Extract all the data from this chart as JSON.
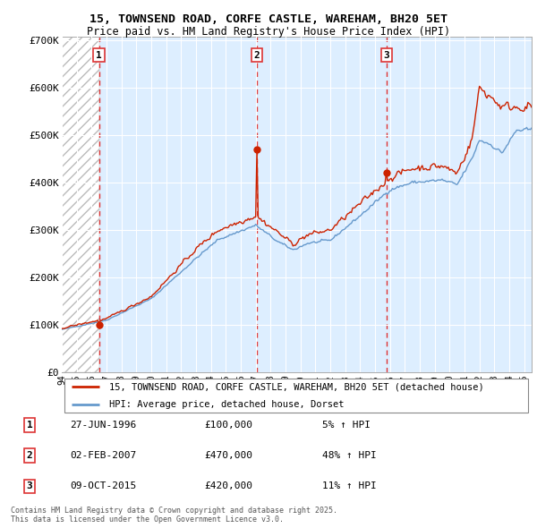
{
  "title_line1": "15, TOWNSEND ROAD, CORFE CASTLE, WAREHAM, BH20 5ET",
  "title_line2": "Price paid vs. HM Land Registry's House Price Index (HPI)",
  "sale_dates": [
    1996.49,
    2007.09,
    2015.77
  ],
  "sale_prices": [
    100000,
    470000,
    420000
  ],
  "sale_labels": [
    "1",
    "2",
    "3"
  ],
  "sale_date_strs": [
    "27-JUN-1996",
    "02-FEB-2007",
    "09-OCT-2015"
  ],
  "sale_price_strs": [
    "£100,000",
    "£470,000",
    "£420,000"
  ],
  "sale_hpi_strs": [
    "5% ↑ HPI",
    "48% ↑ HPI",
    "11% ↑ HPI"
  ],
  "hpi_color": "#6699cc",
  "price_color": "#cc2200",
  "vline_color": "#dd3333",
  "bg_color": "#ddeeff",
  "legend_label_price": "15, TOWNSEND ROAD, CORFE CASTLE, WAREHAM, BH20 5ET (detached house)",
  "legend_label_hpi": "HPI: Average price, detached house, Dorset",
  "footnote": "Contains HM Land Registry data © Crown copyright and database right 2025.\nThis data is licensed under the Open Government Licence v3.0.",
  "xlim_start": 1994.0,
  "xlim_end": 2025.5,
  "ylim_min": 0,
  "ylim_max": 700000,
  "yticks": [
    0,
    100000,
    200000,
    300000,
    400000,
    500000,
    600000,
    700000
  ],
  "ytick_labels": [
    "£0",
    "£100K",
    "£200K",
    "£300K",
    "£400K",
    "£500K",
    "£600K",
    "£700K"
  ],
  "xticks": [
    1994,
    1995,
    1996,
    1997,
    1998,
    1999,
    2000,
    2001,
    2002,
    2003,
    2004,
    2005,
    2006,
    2007,
    2008,
    2009,
    2010,
    2011,
    2012,
    2013,
    2014,
    2015,
    2016,
    2017,
    2018,
    2019,
    2020,
    2021,
    2022,
    2023,
    2024,
    2025
  ]
}
